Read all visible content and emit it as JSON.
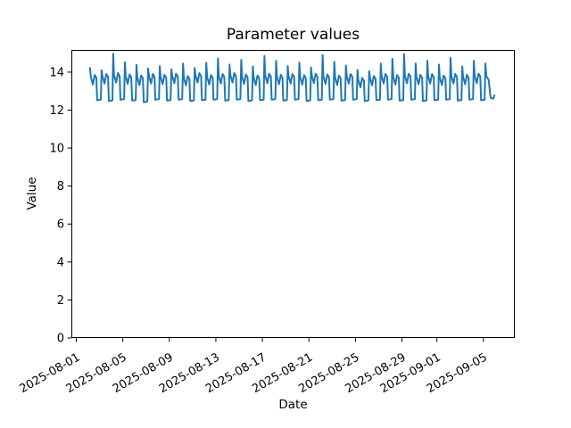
{
  "figure": {
    "title": "Parameter values",
    "xlabel": "Date",
    "ylabel": "Value"
  },
  "chart_data": {
    "type": "line",
    "title": "Parameter values",
    "xlabel": "Date",
    "ylabel": "Value",
    "line_color": "#1f77b4",
    "axis_color": "#000000",
    "background": "#ffffff",
    "grid": false,
    "legend_position": "none",
    "x_reference_date": "2025-08-01",
    "xlim_days": [
      -0.42,
      37.7
    ],
    "ylim": [
      0,
      15.17
    ],
    "y_ticks": [
      0,
      2,
      4,
      6,
      8,
      10,
      12,
      14
    ],
    "x_tick_rotation": 30,
    "x_ticks": [
      {
        "label": "2025-08-01",
        "day": 0
      },
      {
        "label": "2025-08-05",
        "day": 4
      },
      {
        "label": "2025-08-09",
        "day": 8
      },
      {
        "label": "2025-08-13",
        "day": 12
      },
      {
        "label": "2025-08-17",
        "day": 16
      },
      {
        "label": "2025-08-21",
        "day": 20
      },
      {
        "label": "2025-08-25",
        "day": 24
      },
      {
        "label": "2025-08-29",
        "day": 28
      },
      {
        "label": "2025-09-01",
        "day": 31
      },
      {
        "label": "2025-09-05",
        "day": 35
      }
    ],
    "series": [
      {
        "name": "parameter",
        "x_unit": "days since 2025-08-01",
        "points": [
          [
            1.18,
            14.22
          ],
          [
            1.25,
            13.75
          ],
          [
            1.43,
            13.35
          ],
          [
            1.58,
            13.85
          ],
          [
            1.73,
            13.7
          ],
          [
            1.8,
            12.52
          ],
          [
            2.11,
            12.55
          ],
          [
            2.18,
            14.1
          ],
          [
            2.25,
            13.8
          ],
          [
            2.43,
            13.4
          ],
          [
            2.58,
            13.9
          ],
          [
            2.73,
            13.75
          ],
          [
            2.8,
            12.48
          ],
          [
            3.11,
            12.51
          ],
          [
            3.18,
            14.97
          ],
          [
            3.25,
            13.85
          ],
          [
            3.43,
            13.45
          ],
          [
            3.58,
            13.95
          ],
          [
            3.73,
            13.8
          ],
          [
            3.8,
            12.55
          ],
          [
            4.11,
            12.58
          ],
          [
            4.18,
            14.52
          ],
          [
            4.25,
            13.78
          ],
          [
            4.43,
            13.38
          ],
          [
            4.58,
            13.88
          ],
          [
            4.73,
            13.73
          ],
          [
            4.8,
            12.5
          ],
          [
            5.11,
            12.53
          ],
          [
            5.18,
            14.38
          ],
          [
            5.25,
            13.72
          ],
          [
            5.43,
            13.32
          ],
          [
            5.58,
            13.82
          ],
          [
            5.73,
            13.67
          ],
          [
            5.8,
            12.42
          ],
          [
            6.11,
            12.45
          ],
          [
            6.18,
            14.2
          ],
          [
            6.25,
            13.8
          ],
          [
            6.43,
            13.4
          ],
          [
            6.58,
            13.9
          ],
          [
            6.73,
            13.75
          ],
          [
            6.8,
            12.55
          ],
          [
            7.11,
            12.58
          ],
          [
            7.18,
            14.32
          ],
          [
            7.25,
            13.76
          ],
          [
            7.43,
            13.36
          ],
          [
            7.58,
            13.86
          ],
          [
            7.73,
            13.71
          ],
          [
            7.8,
            12.5
          ],
          [
            8.11,
            12.53
          ],
          [
            8.18,
            14.15
          ],
          [
            8.25,
            13.82
          ],
          [
            8.43,
            13.42
          ],
          [
            8.58,
            13.92
          ],
          [
            8.73,
            13.77
          ],
          [
            8.8,
            12.55
          ],
          [
            9.11,
            12.58
          ],
          [
            9.18,
            14.45
          ],
          [
            9.25,
            13.7
          ],
          [
            9.43,
            13.3
          ],
          [
            9.58,
            13.8
          ],
          [
            9.73,
            13.65
          ],
          [
            9.8,
            12.48
          ],
          [
            10.11,
            12.51
          ],
          [
            10.18,
            14.22
          ],
          [
            10.25,
            13.85
          ],
          [
            10.43,
            13.45
          ],
          [
            10.58,
            13.95
          ],
          [
            10.73,
            13.8
          ],
          [
            10.8,
            12.52
          ],
          [
            11.11,
            12.55
          ],
          [
            11.18,
            14.5
          ],
          [
            11.25,
            13.75
          ],
          [
            11.43,
            13.35
          ],
          [
            11.58,
            13.85
          ],
          [
            11.73,
            13.7
          ],
          [
            11.8,
            12.55
          ],
          [
            12.11,
            12.58
          ],
          [
            12.18,
            14.72
          ],
          [
            12.25,
            13.8
          ],
          [
            12.43,
            13.4
          ],
          [
            12.58,
            13.9
          ],
          [
            12.73,
            13.75
          ],
          [
            12.8,
            12.5
          ],
          [
            13.11,
            12.53
          ],
          [
            13.18,
            14.4
          ],
          [
            13.25,
            13.85
          ],
          [
            13.43,
            13.45
          ],
          [
            13.58,
            13.95
          ],
          [
            13.73,
            13.8
          ],
          [
            13.8,
            12.55
          ],
          [
            14.11,
            12.58
          ],
          [
            14.18,
            14.65
          ],
          [
            14.25,
            13.78
          ],
          [
            14.43,
            13.38
          ],
          [
            14.58,
            13.88
          ],
          [
            14.73,
            13.73
          ],
          [
            14.8,
            12.48
          ],
          [
            15.11,
            12.51
          ],
          [
            15.18,
            14.3
          ],
          [
            15.25,
            13.72
          ],
          [
            15.43,
            13.32
          ],
          [
            15.58,
            13.82
          ],
          [
            15.73,
            13.67
          ],
          [
            15.8,
            12.52
          ],
          [
            16.11,
            12.55
          ],
          [
            16.18,
            14.85
          ],
          [
            16.25,
            13.82
          ],
          [
            16.43,
            13.42
          ],
          [
            16.58,
            13.92
          ],
          [
            16.73,
            13.77
          ],
          [
            16.8,
            12.55
          ],
          [
            17.11,
            12.58
          ],
          [
            17.18,
            14.6
          ],
          [
            17.25,
            13.76
          ],
          [
            17.43,
            13.36
          ],
          [
            17.58,
            13.86
          ],
          [
            17.73,
            13.71
          ],
          [
            17.8,
            12.5
          ],
          [
            18.11,
            12.53
          ],
          [
            18.18,
            14.32
          ],
          [
            18.25,
            13.8
          ],
          [
            18.43,
            13.4
          ],
          [
            18.58,
            13.9
          ],
          [
            18.73,
            13.75
          ],
          [
            18.8,
            12.55
          ],
          [
            19.11,
            12.58
          ],
          [
            19.18,
            14.5
          ],
          [
            19.25,
            13.74
          ],
          [
            19.43,
            13.34
          ],
          [
            19.58,
            13.84
          ],
          [
            19.73,
            13.69
          ],
          [
            19.8,
            12.48
          ],
          [
            20.11,
            12.51
          ],
          [
            20.18,
            14.25
          ],
          [
            20.25,
            13.82
          ],
          [
            20.43,
            13.42
          ],
          [
            20.58,
            13.92
          ],
          [
            20.73,
            13.77
          ],
          [
            20.8,
            12.52
          ],
          [
            21.11,
            12.55
          ],
          [
            21.18,
            14.9
          ],
          [
            21.25,
            13.78
          ],
          [
            21.43,
            13.38
          ],
          [
            21.58,
            13.88
          ],
          [
            21.73,
            13.73
          ],
          [
            21.8,
            12.55
          ],
          [
            22.11,
            12.58
          ],
          [
            22.18,
            14.55
          ],
          [
            22.25,
            13.72
          ],
          [
            22.43,
            13.32
          ],
          [
            22.58,
            13.82
          ],
          [
            22.73,
            13.67
          ],
          [
            22.8,
            12.5
          ],
          [
            23.11,
            12.53
          ],
          [
            23.18,
            14.35
          ],
          [
            23.25,
            13.8
          ],
          [
            23.43,
            13.4
          ],
          [
            23.58,
            13.9
          ],
          [
            23.73,
            13.75
          ],
          [
            23.8,
            12.55
          ],
          [
            24.11,
            12.58
          ],
          [
            24.18,
            14.12
          ],
          [
            24.25,
            13.6
          ],
          [
            24.43,
            13.2
          ],
          [
            24.58,
            13.7
          ],
          [
            24.73,
            13.55
          ],
          [
            24.8,
            12.48
          ],
          [
            25.11,
            12.51
          ],
          [
            25.18,
            14.05
          ],
          [
            25.25,
            13.7
          ],
          [
            25.43,
            13.3
          ],
          [
            25.58,
            13.8
          ],
          [
            25.73,
            13.65
          ],
          [
            25.8,
            12.52
          ],
          [
            26.11,
            12.55
          ],
          [
            26.18,
            14.45
          ],
          [
            26.25,
            13.8
          ],
          [
            26.43,
            13.4
          ],
          [
            26.58,
            13.9
          ],
          [
            26.73,
            13.75
          ],
          [
            26.8,
            12.55
          ],
          [
            27.11,
            12.58
          ],
          [
            27.18,
            14.7
          ],
          [
            27.25,
            13.75
          ],
          [
            27.43,
            13.35
          ],
          [
            27.58,
            13.85
          ],
          [
            27.73,
            13.7
          ],
          [
            27.8,
            12.5
          ],
          [
            28.11,
            12.53
          ],
          [
            28.18,
            14.95
          ],
          [
            28.25,
            13.82
          ],
          [
            28.43,
            13.42
          ],
          [
            28.58,
            13.92
          ],
          [
            28.73,
            13.77
          ],
          [
            28.8,
            12.55
          ],
          [
            29.11,
            12.58
          ],
          [
            29.18,
            14.45
          ],
          [
            29.25,
            13.76
          ],
          [
            29.43,
            13.36
          ],
          [
            29.58,
            13.86
          ],
          [
            29.73,
            13.71
          ],
          [
            29.8,
            12.48
          ],
          [
            30.11,
            12.51
          ],
          [
            30.18,
            14.6
          ],
          [
            30.25,
            13.8
          ],
          [
            30.43,
            13.4
          ],
          [
            30.58,
            13.9
          ],
          [
            30.73,
            13.75
          ],
          [
            30.8,
            12.52
          ],
          [
            31.11,
            12.55
          ],
          [
            31.18,
            14.4
          ],
          [
            31.25,
            13.72
          ],
          [
            31.43,
            13.32
          ],
          [
            31.58,
            13.82
          ],
          [
            31.73,
            13.67
          ],
          [
            31.8,
            12.55
          ],
          [
            32.11,
            12.58
          ],
          [
            32.18,
            14.75
          ],
          [
            32.25,
            13.8
          ],
          [
            32.43,
            13.4
          ],
          [
            32.58,
            13.9
          ],
          [
            32.73,
            13.75
          ],
          [
            32.8,
            12.5
          ],
          [
            33.11,
            12.53
          ],
          [
            33.18,
            14.3
          ],
          [
            33.25,
            13.76
          ],
          [
            33.43,
            13.36
          ],
          [
            33.58,
            13.86
          ],
          [
            33.73,
            13.71
          ],
          [
            33.8,
            12.55
          ],
          [
            34.11,
            12.58
          ],
          [
            34.18,
            14.6
          ],
          [
            34.25,
            13.82
          ],
          [
            34.43,
            13.42
          ],
          [
            34.58,
            13.92
          ],
          [
            34.73,
            13.77
          ],
          [
            34.8,
            12.52
          ],
          [
            35.11,
            12.55
          ],
          [
            35.18,
            14.45
          ],
          [
            35.25,
            13.78
          ],
          [
            35.45,
            13.6
          ],
          [
            35.62,
            12.65
          ],
          [
            35.85,
            12.6
          ],
          [
            35.95,
            12.78
          ]
        ]
      }
    ]
  }
}
